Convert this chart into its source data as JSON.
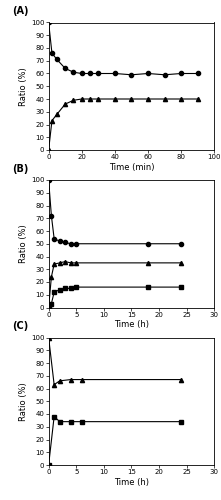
{
  "A": {
    "label": "(A)",
    "xlabel": "Time (min)",
    "ylabel": "Ratio (%)",
    "xlim": [
      0,
      100
    ],
    "ylim": [
      0,
      100
    ],
    "xticks": [
      0,
      20,
      40,
      60,
      80,
      100
    ],
    "yticks": [
      0,
      10,
      20,
      30,
      40,
      50,
      60,
      70,
      80,
      90,
      100
    ],
    "circle": {
      "x": [
        0,
        2,
        5,
        10,
        15,
        20,
        25,
        30,
        40,
        50,
        60,
        70,
        80,
        90
      ],
      "y": [
        100,
        76,
        71,
        64,
        61,
        60,
        60,
        60,
        60,
        59,
        60,
        59,
        60,
        60
      ]
    },
    "triangle": {
      "x": [
        0,
        2,
        5,
        10,
        15,
        20,
        25,
        30,
        40,
        50,
        60,
        70,
        80,
        90
      ],
      "y": [
        0,
        23,
        28,
        36,
        39,
        40,
        40,
        40,
        40,
        40,
        40,
        40,
        40,
        40
      ]
    }
  },
  "B": {
    "label": "(B)",
    "xlabel": "Time (h)",
    "ylabel": "Ratio (%)",
    "xlim": [
      0,
      30
    ],
    "ylim": [
      0,
      100
    ],
    "xticks": [
      0,
      5,
      10,
      15,
      20,
      25,
      30
    ],
    "yticks": [
      0,
      10,
      20,
      30,
      40,
      50,
      60,
      70,
      80,
      90,
      100
    ],
    "circle": {
      "x": [
        0,
        0.5,
        1,
        2,
        3,
        4,
        5,
        18,
        24
      ],
      "y": [
        100,
        72,
        54,
        52,
        51,
        50,
        50,
        50,
        50
      ]
    },
    "triangle": {
      "x": [
        0,
        0.5,
        1,
        2,
        3,
        4,
        5,
        18,
        24
      ],
      "y": [
        0,
        24,
        34,
        35,
        36,
        35,
        35,
        35,
        35
      ]
    },
    "square": {
      "x": [
        0,
        0.5,
        1,
        2,
        3,
        4,
        5,
        18,
        24
      ],
      "y": [
        0,
        3,
        12,
        14,
        15,
        15,
        16,
        16,
        16
      ]
    }
  },
  "C": {
    "label": "(C)",
    "xlabel": "Time (h)",
    "ylabel": "Ratio (%)",
    "xlim": [
      0,
      30
    ],
    "ylim": [
      0,
      100
    ],
    "xticks": [
      0,
      5,
      10,
      15,
      20,
      25,
      30
    ],
    "yticks": [
      0,
      10,
      20,
      30,
      40,
      50,
      60,
      70,
      80,
      90,
      100
    ],
    "triangle": {
      "x": [
        0,
        1,
        2,
        4,
        6,
        24
      ],
      "y": [
        100,
        63,
        66,
        67,
        67,
        67
      ]
    },
    "square": {
      "x": [
        0,
        1,
        2,
        4,
        6,
        24
      ],
      "y": [
        0,
        38,
        34,
        34,
        34,
        34
      ]
    }
  },
  "marker_size": 3,
  "linewidth": 0.8,
  "tick_fontsize": 5,
  "label_fontsize": 6,
  "panel_label_fontsize": 7,
  "fig_width": 2.21,
  "fig_height": 5.0,
  "dpi": 100
}
